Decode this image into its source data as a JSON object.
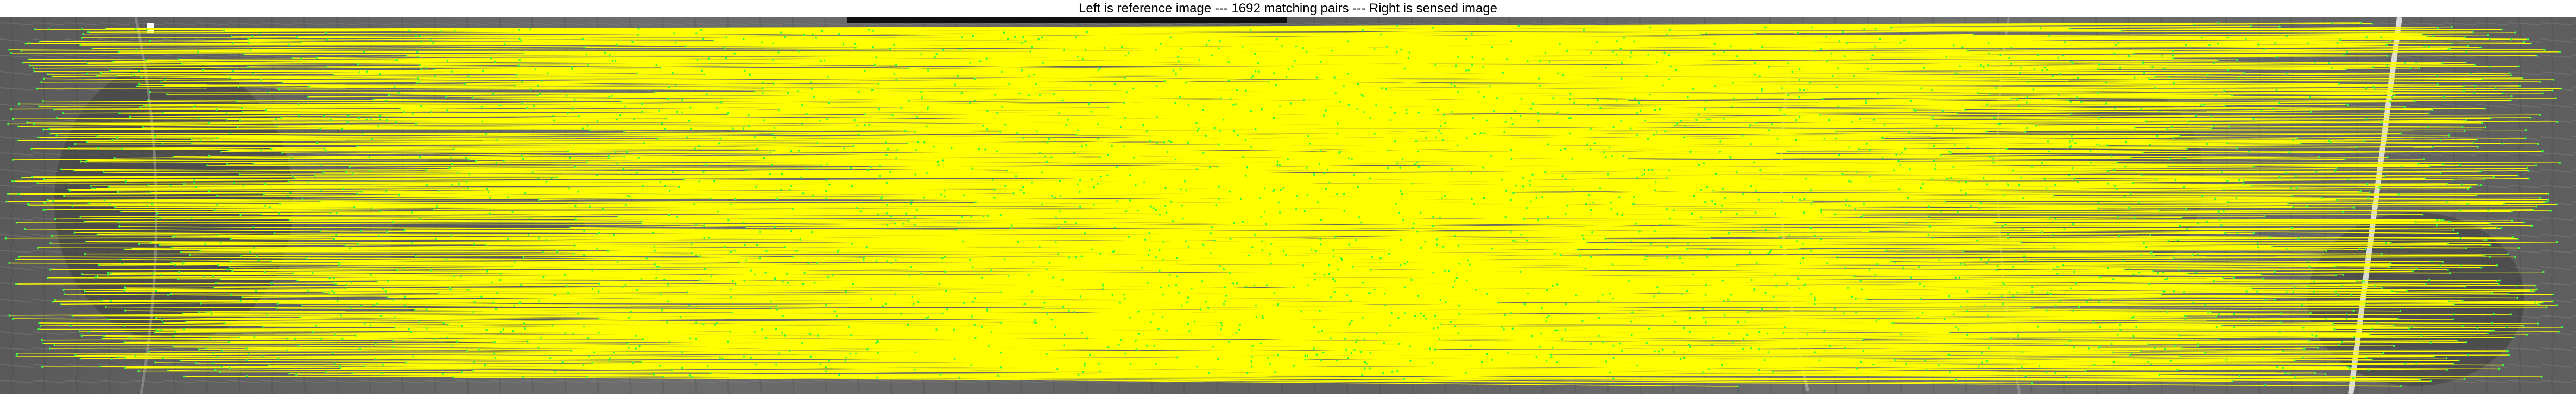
{
  "title": "Left is reference image --- 1692 matching pairs --- Right is sensed image",
  "figure": {
    "matching_pairs": 1692,
    "line_color": "#ffff00",
    "point_color": "#3cff3c",
    "background_tone": "#777777"
  }
}
